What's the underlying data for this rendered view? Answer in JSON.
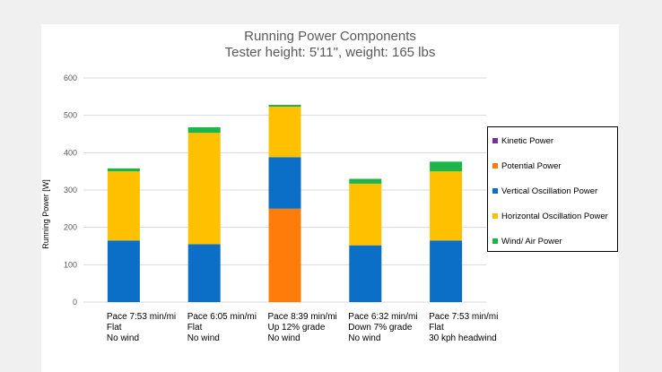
{
  "chart_data": {
    "type": "bar",
    "stacked": true,
    "title": "Running Power Components",
    "subtitle": "Tester height: 5'11\", weight: 165 lbs",
    "ylabel": "Running Power [W]",
    "xlabel": "",
    "ylim": [
      0,
      600
    ],
    "yticks": [
      0,
      100,
      200,
      300,
      400,
      500,
      600
    ],
    "grid": true,
    "legend_position": "right",
    "categories": [
      [
        "Pace 7:53 min/mi",
        "Flat",
        "No wind"
      ],
      [
        "Pace 6:05 min/mi",
        "Flat",
        "No wind"
      ],
      [
        "Pace 8:39 min/mi",
        "Up 12% grade",
        "No wind"
      ],
      [
        "Pace 6:32 min/mi",
        "Down 7% grade",
        "No wind"
      ],
      [
        "Pace 7:53 min/mi",
        "Flat",
        "30 kph headwind"
      ]
    ],
    "series": [
      {
        "name": "Kinetic Power",
        "color": "#7030a0",
        "values": [
          0,
          0,
          0,
          0,
          0
        ]
      },
      {
        "name": "Potential Power",
        "color": "#ff7c0a",
        "values": [
          0,
          0,
          250,
          0,
          0
        ]
      },
      {
        "name": "Vertical Oscillation Power",
        "color": "#0b6fc7",
        "values": [
          165,
          155,
          138,
          152,
          165
        ]
      },
      {
        "name": "Horizontal Oscillation Power",
        "color": "#ffc000",
        "values": [
          185,
          298,
          135,
          165,
          185
        ]
      },
      {
        "name": "Wind/ Air Power",
        "color": "#1db54a",
        "values": [
          8,
          15,
          5,
          13,
          26
        ]
      }
    ]
  }
}
